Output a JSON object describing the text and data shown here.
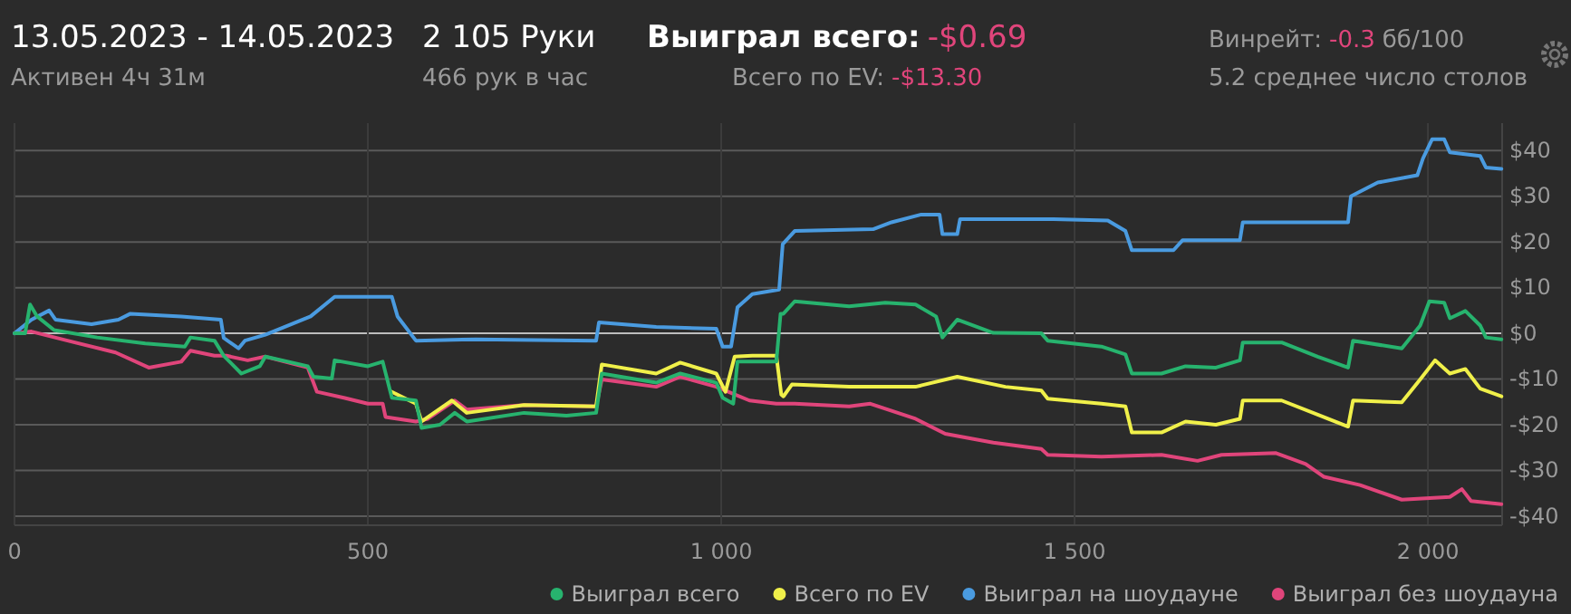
{
  "chart_data": {
    "type": "line",
    "title": "13.05.2023 - 14.05.2023",
    "annotations": [
      "Активен 4ч 31м",
      "2 105 Руки",
      "466 рук в час",
      "Выиграл всего:",
      "-$0.69",
      "Всего по EV:",
      "-$13.30",
      "Винрейт:",
      "-0.3",
      "бб/100",
      "5.2 среднее число столов"
    ],
    "xlim": [
      0,
      2105
    ],
    "xticks": [
      0,
      500,
      {
        "value": 1000,
        "label": "1 000"
      },
      {
        "value": 1500,
        "label": "1 500"
      },
      {
        "value": 2000,
        "label": "2 000"
      }
    ],
    "ylim": [
      -42,
      46
    ],
    "yticks": [
      {
        "value": -40,
        "label": "-$40"
      },
      {
        "value": -30,
        "label": "-$30"
      },
      {
        "value": -20,
        "label": "-$20"
      },
      {
        "value": -10,
        "label": "-$10"
      },
      {
        "value": 0,
        "label": "$0"
      },
      {
        "value": 10,
        "label": "$10"
      },
      {
        "value": 20,
        "label": "$20"
      },
      {
        "value": 30,
        "label": "$30"
      },
      {
        "value": 40,
        "label": "$40"
      }
    ],
    "grid": true,
    "legend": "bottom right",
    "line_style": "solid",
    "marker": "none",
    "series": [
      {
        "name": "Выиграл всего",
        "color": "#27b36e",
        "x": [
          0,
          15,
          22,
          32,
          56,
          117,
          185,
          241,
          249,
          283,
          296,
          321,
          347,
          355,
          415,
          423,
          449,
          453,
          500,
          521,
          534,
          568,
          576,
          602,
          623,
          640,
          721,
          781,
          823,
          831,
          908,
          942,
          993,
          1002,
          1017,
          1023,
          1078,
          1084,
          1088,
          1104,
          1181,
          1232,
          1275,
          1304,
          1313,
          1334,
          1385,
          1453,
          1462,
          1538,
          1572,
          1581,
          1623,
          1657,
          1700,
          1734,
          1738,
          1793,
          1844,
          1887,
          1894,
          1963,
          1989,
          2002,
          2023,
          2031,
          2053,
          2074,
          2082,
          2104
        ],
        "values": [
          0,
          0,
          6.3,
          3.7,
          0.7,
          -0.9,
          -2.2,
          -2.9,
          -0.9,
          -1.6,
          -4.9,
          -8.8,
          -7.2,
          -5.1,
          -7.2,
          -9.5,
          -9.9,
          -5.9,
          -7.2,
          -6.2,
          -14.1,
          -14.7,
          -20.7,
          -20,
          -17.4,
          -19.3,
          -17.4,
          -18,
          -17.4,
          -8.8,
          -10.8,
          -8.8,
          -10.8,
          -14.1,
          -15.4,
          -6.2,
          -6.2,
          4.3,
          4.3,
          7,
          5.9,
          6.7,
          6.3,
          3.7,
          -0.9,
          3,
          0.1,
          0,
          -1.6,
          -2.9,
          -4.6,
          -8.8,
          -8.8,
          -7.2,
          -7.5,
          -5.9,
          -2,
          -2,
          -5.1,
          -7.5,
          -1.6,
          -3.3,
          1.7,
          7,
          6.7,
          3.3,
          4.9,
          1.7,
          -0.9,
          -1.3
        ]
      },
      {
        "name": "Всего по EV",
        "color": "#f0f04a",
        "x": [
          534,
          568,
          576,
          619,
          640,
          721,
          823,
          831,
          908,
          942,
          993,
          1006,
          1019,
          1044,
          1078,
          1085,
          1088,
          1100,
          1181,
          1275,
          1334,
          1402,
          1453,
          1462,
          1538,
          1572,
          1581,
          1623,
          1657,
          1700,
          1734,
          1738,
          1793,
          1844,
          1887,
          1894,
          1963,
          1989,
          2010,
          2031,
          2053,
          2074,
          2104
        ],
        "values": [
          -12.8,
          -15.4,
          -19.3,
          -14.7,
          -17.4,
          -15.7,
          -16,
          -6.8,
          -8.8,
          -6.4,
          -8.8,
          -12.8,
          -5.1,
          -4.9,
          -4.9,
          -13.4,
          -13.8,
          -11.2,
          -11.7,
          -11.7,
          -9.5,
          -11.7,
          -12.5,
          -14.3,
          -15.4,
          -16,
          -21.7,
          -21.7,
          -19.3,
          -20,
          -18.7,
          -14.7,
          -14.7,
          -17.8,
          -20.4,
          -14.7,
          -15.1,
          -10.1,
          -5.9,
          -8.8,
          -7.8,
          -12.1,
          -13.8
        ]
      },
      {
        "name": "Выиграл на шоудауне",
        "color": "#4a9be0",
        "x": [
          0,
          24,
          49,
          58,
          109,
          147,
          164,
          236,
          292,
          296,
          317,
          326,
          355,
          419,
          453,
          534,
          542,
          568,
          653,
          823,
          827,
          908,
          993,
          1002,
          1014,
          1023,
          1044,
          1082,
          1087,
          1104,
          1215,
          1241,
          1283,
          1309,
          1313,
          1334,
          1338,
          1470,
          1547,
          1572,
          1581,
          1640,
          1653,
          1734,
          1738,
          1887,
          1891,
          1929,
          1985,
          1993,
          2006,
          2023,
          2031,
          2074,
          2082,
          2104
        ],
        "values": [
          0,
          3,
          5,
          3,
          2,
          3,
          4.3,
          3.7,
          3,
          -1,
          -3.3,
          -1.6,
          -0.3,
          3.7,
          8,
          8,
          3.7,
          -1.6,
          -1.3,
          -1.6,
          2.4,
          1.4,
          1,
          -2.9,
          -2.9,
          5.7,
          8.6,
          9.6,
          19.5,
          22.4,
          22.8,
          24.3,
          26,
          26,
          21.7,
          21.7,
          25,
          25,
          24.7,
          22.4,
          18.2,
          18.2,
          20.4,
          20.4,
          24.3,
          24.3,
          30,
          33,
          34.6,
          38.3,
          42.5,
          42.5,
          39.6,
          38.8,
          36.3,
          36
        ]
      },
      {
        "name": "Выиграл без шоудауна",
        "color": "#e0457b",
        "x": [
          0,
          24,
          75,
          143,
          190,
          236,
          249,
          283,
          300,
          330,
          355,
          415,
          428,
          466,
          500,
          521,
          525,
          568,
          585,
          623,
          640,
          721,
          823,
          831,
          908,
          942,
          993,
          1010,
          1040,
          1078,
          1104,
          1181,
          1211,
          1275,
          1317,
          1385,
          1453,
          1462,
          1538,
          1623,
          1674,
          1708,
          1785,
          1827,
          1853,
          1904,
          1963,
          2031,
          2048,
          2061,
          2104
        ],
        "values": [
          0,
          0.4,
          -1.6,
          -4.2,
          -7.5,
          -6.2,
          -3.8,
          -4.9,
          -4.9,
          -5.9,
          -5.1,
          -7.5,
          -12.8,
          -14.1,
          -15.4,
          -15.4,
          -18.3,
          -19.3,
          -18.7,
          -14.7,
          -16.7,
          -15.7,
          -16,
          -10.1,
          -11.7,
          -9.5,
          -11.7,
          -12.8,
          -14.7,
          -15.4,
          -15.4,
          -16,
          -15.4,
          -18.7,
          -22,
          -23.9,
          -25.3,
          -26.6,
          -27,
          -26.6,
          -27.9,
          -26.6,
          -26.2,
          -28.6,
          -31.4,
          -33.2,
          -36.4,
          -35.8,
          -34.1,
          -36.7,
          -37.4
        ]
      }
    ]
  }
}
